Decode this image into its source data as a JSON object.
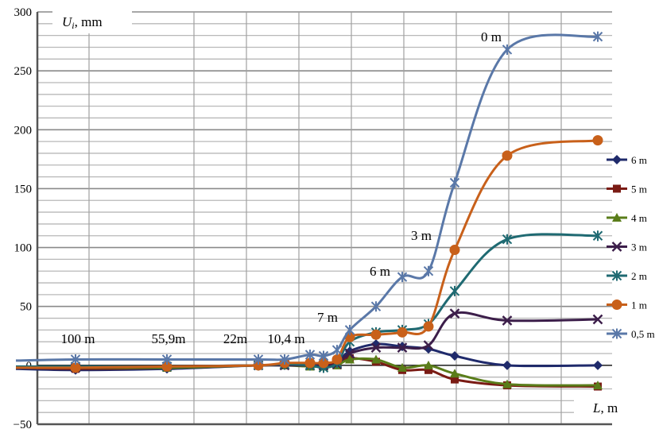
{
  "chart_data": {
    "type": "line",
    "ylabel_symbol": "U",
    "ylabel_subscript": "i",
    "ylabel_unit": ", mm",
    "xlabel_symbol": "L",
    "xlabel_unit": ", m",
    "ylim": [
      -50,
      300
    ],
    "yticks": [
      300,
      250,
      200,
      150,
      100,
      50,
      0,
      -50
    ],
    "grid": true,
    "legend": "right",
    "x": [
      -150,
      -100,
      -55.9,
      -22,
      -10.4,
      -7,
      -6,
      -4.5,
      -3,
      -2,
      -1,
      0,
      1,
      2,
      3,
      4
    ],
    "series": [
      {
        "name": "6 m",
        "color": "#1f2a6b",
        "marker": "diamond",
        "values": [
          -3,
          -4,
          -3,
          0,
          0,
          1,
          2,
          3,
          12,
          18,
          16,
          14,
          8,
          0,
          null,
          0
        ]
      },
      {
        "name": "5 m",
        "color": "#7a1b14",
        "marker": "square",
        "values": [
          -2,
          -3,
          -2,
          0,
          1,
          1,
          1,
          2,
          6,
          3,
          -4,
          -4,
          -12,
          -17,
          null,
          -18
        ]
      },
      {
        "name": "4 m",
        "color": "#5a7d1a",
        "marker": "triangle",
        "values": [
          -2,
          -2,
          -2,
          0,
          0,
          -1,
          -1,
          0,
          5,
          5,
          -2,
          0,
          -7,
          -16,
          null,
          -17
        ]
      },
      {
        "name": "3 m",
        "color": "#3c1e4a",
        "marker": "x",
        "values": [
          -2,
          -2,
          -1,
          0,
          0,
          0,
          0,
          1,
          10,
          15,
          15,
          17,
          44,
          38,
          null,
          39
        ]
      },
      {
        "name": "2 m",
        "color": "#1f6a72",
        "marker": "star",
        "values": [
          -1,
          -1,
          -1,
          0,
          1,
          0,
          -2,
          2,
          20,
          28,
          30,
          35,
          63,
          107,
          null,
          110
        ]
      },
      {
        "name": "1 m",
        "color": "#c8601a",
        "marker": "circle",
        "values": [
          -2,
          -2,
          -1,
          0,
          2,
          2,
          2,
          5,
          24,
          26,
          28,
          33,
          98,
          178,
          null,
          191
        ]
      },
      {
        "name": "0,5 m",
        "color": "#5a78a8",
        "marker": "star",
        "values": [
          4,
          5,
          5,
          5,
          5,
          9,
          8,
          13,
          30,
          50,
          75,
          80,
          155,
          268,
          null,
          279
        ]
      }
    ],
    "annotations": [
      {
        "text": "100 m",
        "x": -100,
        "y": 21
      },
      {
        "text": "55,9m",
        "x": -55.9,
        "y": 21
      },
      {
        "text": "22m",
        "x": -22,
        "y": 21
      },
      {
        "text": "10,4 m",
        "x": -10.4,
        "y": 21
      },
      {
        "text": "7 m",
        "x": -7,
        "y": 40
      },
      {
        "text": "6 m",
        "x": -3,
        "y": 80
      },
      {
        "text": "3 m",
        "x": -1,
        "y": 110
      },
      {
        "text": "0 m",
        "x": 0.5,
        "y": 280
      }
    ]
  }
}
